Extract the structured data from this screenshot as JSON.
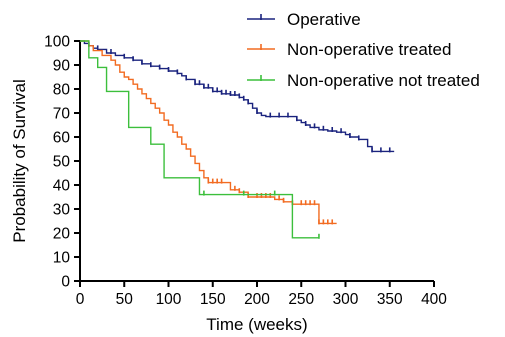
{
  "chart_data": {
    "type": "line",
    "subtype": "kaplan-meier-step",
    "xlabel": "Time (weeks)",
    "ylabel": "Probability of Survival",
    "xlim": [
      0,
      400
    ],
    "ylim": [
      0,
      100
    ],
    "xticks": [
      0,
      50,
      100,
      150,
      200,
      250,
      300,
      350,
      400
    ],
    "yticks": [
      0,
      10,
      20,
      30,
      40,
      50,
      60,
      70,
      80,
      90,
      100
    ],
    "grid": false,
    "legend_position": "top-right",
    "series": [
      {
        "name": "Operative",
        "color": "#1a237e",
        "points": [
          [
            0,
            100
          ],
          [
            5,
            99
          ],
          [
            10,
            98
          ],
          [
            15,
            97
          ],
          [
            20,
            96.5
          ],
          [
            30,
            95
          ],
          [
            40,
            94
          ],
          [
            50,
            93
          ],
          [
            60,
            92
          ],
          [
            70,
            90.5
          ],
          [
            80,
            89.5
          ],
          [
            90,
            88.5
          ],
          [
            100,
            87.5
          ],
          [
            110,
            86.5
          ],
          [
            115,
            85.5
          ],
          [
            120,
            84
          ],
          [
            130,
            82
          ],
          [
            140,
            80.5
          ],
          [
            150,
            79
          ],
          [
            160,
            78
          ],
          [
            170,
            77.5
          ],
          [
            180,
            76.5
          ],
          [
            185,
            75.5
          ],
          [
            190,
            74
          ],
          [
            195,
            72
          ],
          [
            200,
            70
          ],
          [
            205,
            69
          ],
          [
            210,
            68.5
          ],
          [
            240,
            68.5
          ],
          [
            245,
            67
          ],
          [
            250,
            66
          ],
          [
            255,
            65
          ],
          [
            260,
            64
          ],
          [
            270,
            63
          ],
          [
            280,
            62.5
          ],
          [
            290,
            62
          ],
          [
            300,
            61
          ],
          [
            305,
            60
          ],
          [
            315,
            59
          ],
          [
            325,
            56
          ],
          [
            330,
            54
          ],
          [
            355,
            54
          ]
        ],
        "censor_x": [
          10,
          20,
          35,
          50,
          60,
          70,
          80,
          90,
          100,
          110,
          120,
          130,
          135,
          140,
          145,
          150,
          155,
          160,
          165,
          170,
          175,
          180,
          185,
          190,
          200,
          215,
          225,
          235,
          245,
          255,
          265,
          275,
          285,
          295,
          305,
          315,
          330,
          340,
          350
        ]
      },
      {
        "name": "Non-operative treated",
        "color": "#f26b21",
        "points": [
          [
            0,
            100
          ],
          [
            10,
            98
          ],
          [
            15,
            96
          ],
          [
            25,
            94
          ],
          [
            35,
            92
          ],
          [
            40,
            90
          ],
          [
            45,
            87
          ],
          [
            50,
            85
          ],
          [
            55,
            84
          ],
          [
            60,
            82
          ],
          [
            65,
            80
          ],
          [
            70,
            78
          ],
          [
            75,
            76
          ],
          [
            80,
            74
          ],
          [
            85,
            72
          ],
          [
            90,
            70
          ],
          [
            95,
            67
          ],
          [
            100,
            65
          ],
          [
            105,
            62
          ],
          [
            110,
            60
          ],
          [
            115,
            57
          ],
          [
            120,
            55
          ],
          [
            125,
            52
          ],
          [
            130,
            49
          ],
          [
            135,
            46
          ],
          [
            140,
            43
          ],
          [
            145,
            41
          ],
          [
            160,
            41
          ],
          [
            170,
            38
          ],
          [
            180,
            37
          ],
          [
            190,
            35
          ],
          [
            200,
            35
          ],
          [
            215,
            35
          ],
          [
            220,
            34
          ],
          [
            230,
            33
          ],
          [
            240,
            32
          ],
          [
            260,
            32
          ],
          [
            270,
            24
          ],
          [
            290,
            24
          ]
        ],
        "censor_x": [
          145,
          150,
          155,
          160,
          175,
          180,
          190,
          200,
          205,
          210,
          215,
          225,
          230,
          240,
          250,
          255,
          260,
          265,
          270,
          275,
          280,
          285
        ]
      },
      {
        "name": "Non-operative not treated",
        "color": "#3cbf3c",
        "points": [
          [
            0,
            100
          ],
          [
            10,
            93
          ],
          [
            20,
            89
          ],
          [
            30,
            79
          ],
          [
            50,
            79
          ],
          [
            55,
            64
          ],
          [
            70,
            64
          ],
          [
            80,
            57
          ],
          [
            90,
            57
          ],
          [
            95,
            43
          ],
          [
            130,
            43
          ],
          [
            135,
            36
          ],
          [
            235,
            36
          ],
          [
            240,
            18
          ],
          [
            270,
            18
          ]
        ],
        "censor_x": [
          140,
          185,
          220,
          270
        ]
      }
    ]
  }
}
